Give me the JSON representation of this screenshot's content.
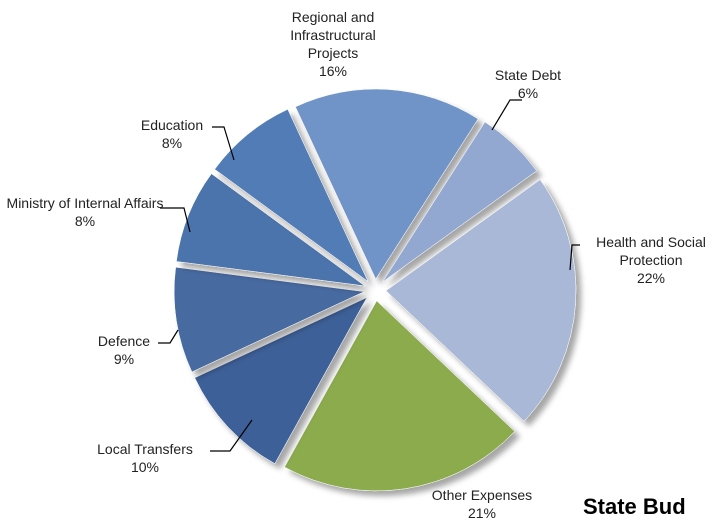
{
  "chart_data": {
    "type": "pie",
    "title": "State Bud",
    "categories": [
      "Regional and Infrastructural Projects",
      "State Debt",
      "Health and Social Protection",
      "Other Expenses",
      "Local Transfers",
      "Defence",
      "Ministry of Internal Affairs",
      "Education"
    ],
    "values": [
      16,
      6,
      22,
      21,
      10,
      9,
      8,
      8
    ],
    "value_labels": [
      "16%",
      "6%",
      "22%",
      "21%",
      "10%",
      "9%",
      "8%",
      "8%"
    ],
    "colors": [
      "#7093c8",
      "#93a8d0",
      "#a9b8d6",
      "#8bab4e",
      "#3d6198",
      "#466ba1",
      "#4c73ac",
      "#517bb6"
    ]
  }
}
